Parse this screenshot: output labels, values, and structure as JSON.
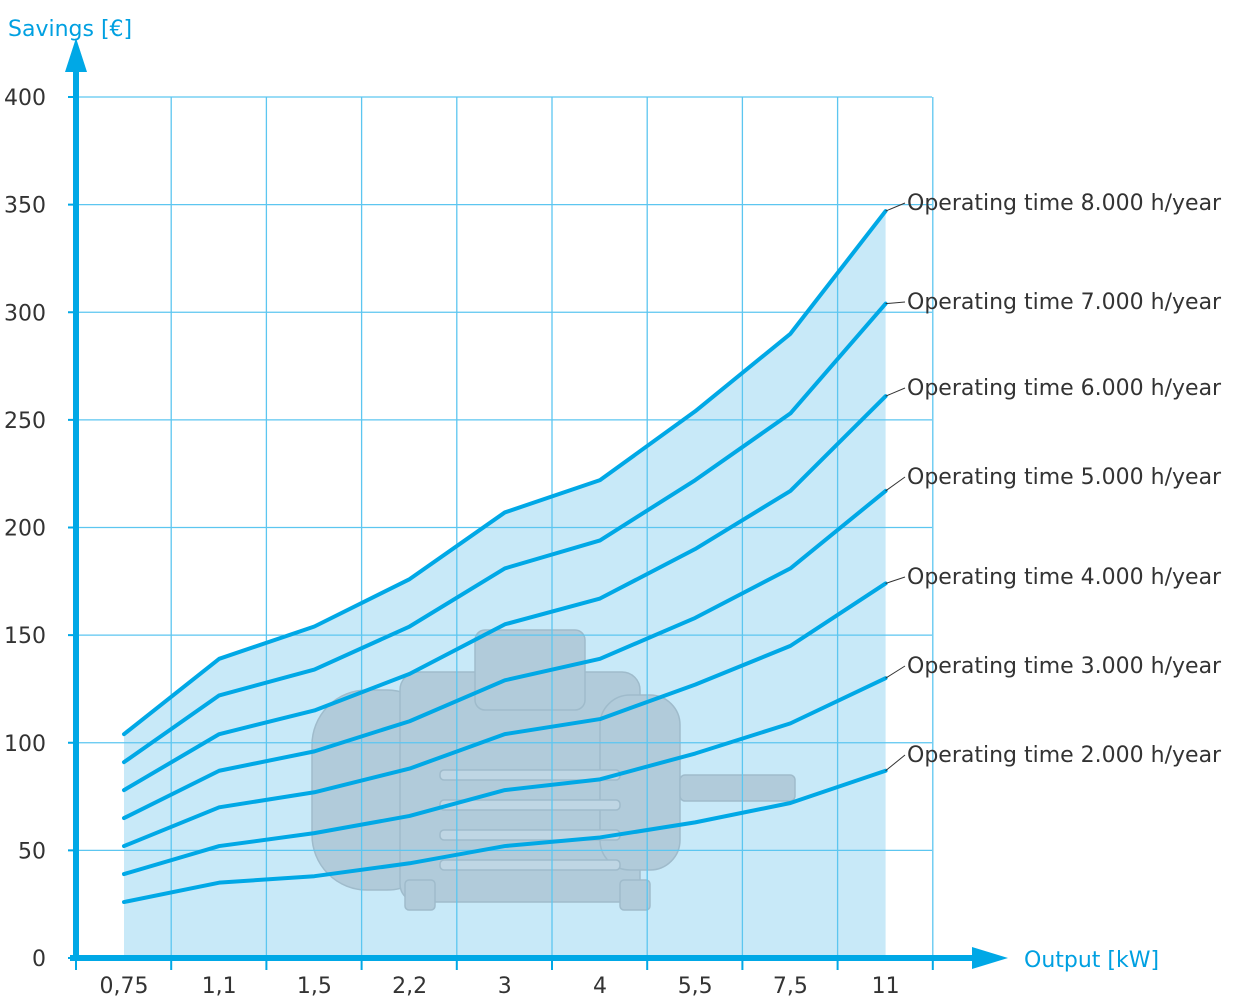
{
  "colors": {
    "accent": "#00a8e6",
    "area_fill": "#c8e9f8",
    "grid": "#5cc6f0",
    "text": "#333333"
  },
  "image": {
    "name": "electric-motor-icon"
  },
  "chart_data": {
    "type": "line",
    "title": "",
    "xlabel": "Output [kW]",
    "ylabel": "Savings [€]",
    "categories": [
      "0,75",
      "1,1",
      "1,5",
      "2,2",
      "3",
      "4",
      "5,5",
      "7,5",
      "11"
    ],
    "ylim": [
      0,
      400
    ],
    "yticks": [
      0,
      50,
      100,
      150,
      200,
      250,
      300,
      350,
      400
    ],
    "grid": true,
    "legend": "labels at right end of each line",
    "series": [
      {
        "name": "Operating time 8.000 h/year",
        "values": [
          104,
          139,
          154,
          176,
          207,
          222,
          254,
          290,
          347
        ]
      },
      {
        "name": "Operating time 7.000 h/year",
        "values": [
          91,
          122,
          134,
          154,
          181,
          194,
          222,
          253,
          304
        ]
      },
      {
        "name": "Operating time 6.000 h/year",
        "values": [
          78,
          104,
          115,
          132,
          155,
          167,
          190,
          217,
          261
        ]
      },
      {
        "name": "Operating time 5.000 h/year",
        "values": [
          65,
          87,
          96,
          110,
          129,
          139,
          158,
          181,
          217
        ]
      },
      {
        "name": "Operating time 4.000 h/year",
        "values": [
          52,
          70,
          77,
          88,
          104,
          111,
          127,
          145,
          174
        ]
      },
      {
        "name": "Operating time 3.000 h/year",
        "values": [
          39,
          52,
          58,
          66,
          78,
          83,
          95,
          109,
          130
        ]
      },
      {
        "name": "Operating time 2.000 h/year",
        "values": [
          26,
          35,
          38,
          44,
          52,
          56,
          63,
          72,
          87
        ]
      }
    ]
  }
}
